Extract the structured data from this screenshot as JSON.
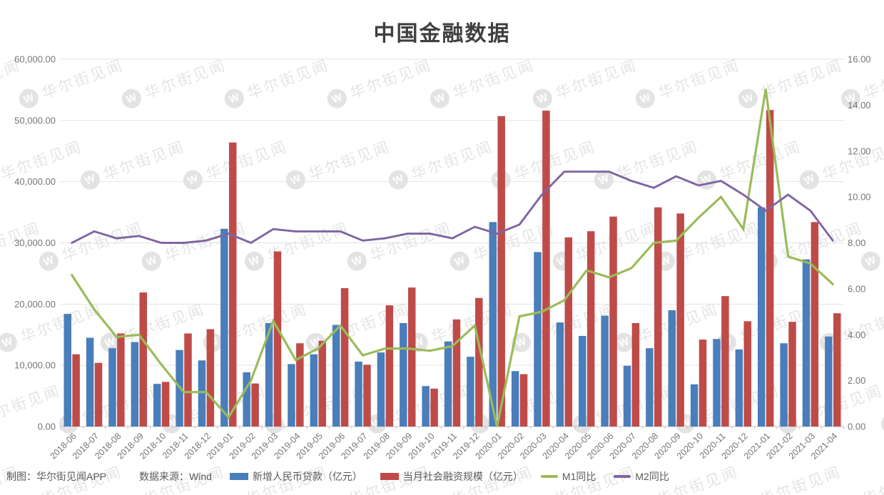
{
  "title": "中国金融数据",
  "watermark": {
    "brand": "华尔街见闻",
    "logo_letter": "W"
  },
  "footer": {
    "credit": "制图：华尔街见闻APP",
    "source": "数据来源：Wind"
  },
  "colors": {
    "loans_bar": "#4A7EBB",
    "tsf_bar": "#BE4B48",
    "m1_line": "#9BBB59",
    "m2_line": "#8064A2",
    "grid": "#E2E2E2",
    "axis_line": "#C9C9C9",
    "axis_text": "#757575",
    "title_text": "#3F3F3F",
    "footer_text": "#595959",
    "watermark": "#E4E4E4"
  },
  "chart_data": {
    "type": "combo-bar-line",
    "title": "中国金融数据",
    "grid": "horizontal",
    "legend_position": "bottom",
    "categories": [
      "2018-06",
      "2018-07",
      "2018-08",
      "2018-09",
      "2018-10",
      "2018-11",
      "2018-12",
      "2019-01",
      "2019-02",
      "2019-03",
      "2019-04",
      "2019-05",
      "2019-06",
      "2019-07",
      "2019-08",
      "2019-09",
      "2019-10",
      "2019-11",
      "2019-12",
      "2020-01",
      "2020-02",
      "2020-03",
      "2020-04",
      "2020-05",
      "2020-06",
      "2020-07",
      "2020-08",
      "2020-09",
      "2020-10",
      "2020-11",
      "2020-12",
      "2021-01",
      "2021-02",
      "2021-03",
      "2021-04"
    ],
    "left_axis": {
      "min": 0,
      "max": 60000,
      "step": 10000,
      "tick_labels": [
        "0.00",
        "10,000.00",
        "20,000.00",
        "30,000.00",
        "40,000.00",
        "50,000.00",
        "60,000.00"
      ]
    },
    "right_axis": {
      "min": 0,
      "max": 16,
      "step": 2,
      "tick_labels": [
        "0.00",
        "2.00",
        "4.00",
        "6.00",
        "8.00",
        "10.00",
        "12.00",
        "14.00",
        "16.00"
      ]
    },
    "series": [
      {
        "name": "新增人民币贷款（亿元）",
        "kind": "bar",
        "axis": "left",
        "color": "#4A7EBB",
        "values": [
          18400,
          14500,
          12800,
          13800,
          6970,
          12500,
          10800,
          32300,
          8858,
          16900,
          10200,
          11800,
          16600,
          10600,
          12100,
          16900,
          6613,
          13900,
          11400,
          33400,
          9057,
          28500,
          17000,
          14800,
          18100,
          9927,
          12800,
          19000,
          6898,
          14300,
          12600,
          35800,
          13600,
          27300,
          14700
        ]
      },
      {
        "name": "当月社会融资规模（亿元）",
        "kind": "bar",
        "axis": "left",
        "color": "#BE4B48",
        "values": [
          11800,
          10400,
          15200,
          21900,
          7288,
          15200,
          15900,
          46400,
          7030,
          28600,
          13600,
          14000,
          22600,
          10100,
          19800,
          22700,
          6189,
          17500,
          21000,
          50700,
          8554,
          51600,
          30900,
          31900,
          34300,
          16900,
          35800,
          34800,
          14200,
          21300,
          17200,
          51700,
          17100,
          33400,
          18500
        ]
      },
      {
        "name": "M1同比",
        "kind": "line",
        "axis": "right",
        "color": "#9BBB59",
        "values": [
          6.6,
          5.1,
          3.9,
          4.0,
          2.7,
          1.5,
          1.5,
          0.4,
          2.0,
          4.6,
          2.9,
          3.4,
          4.4,
          3.1,
          3.4,
          3.4,
          3.3,
          3.5,
          4.4,
          0.0,
          4.8,
          5.0,
          5.5,
          6.8,
          6.5,
          6.9,
          8.0,
          8.1,
          9.1,
          10.0,
          8.6,
          14.7,
          7.4,
          7.1,
          6.2
        ]
      },
      {
        "name": "M2同比",
        "kind": "line",
        "axis": "right",
        "color": "#8064A2",
        "values": [
          8.0,
          8.5,
          8.2,
          8.3,
          8.0,
          8.0,
          8.1,
          8.4,
          8.0,
          8.6,
          8.5,
          8.5,
          8.5,
          8.1,
          8.2,
          8.4,
          8.4,
          8.2,
          8.7,
          8.4,
          8.8,
          10.1,
          11.1,
          11.1,
          11.1,
          10.7,
          10.4,
          10.9,
          10.5,
          10.7,
          10.1,
          9.4,
          10.1,
          9.4,
          8.1
        ]
      }
    ]
  }
}
